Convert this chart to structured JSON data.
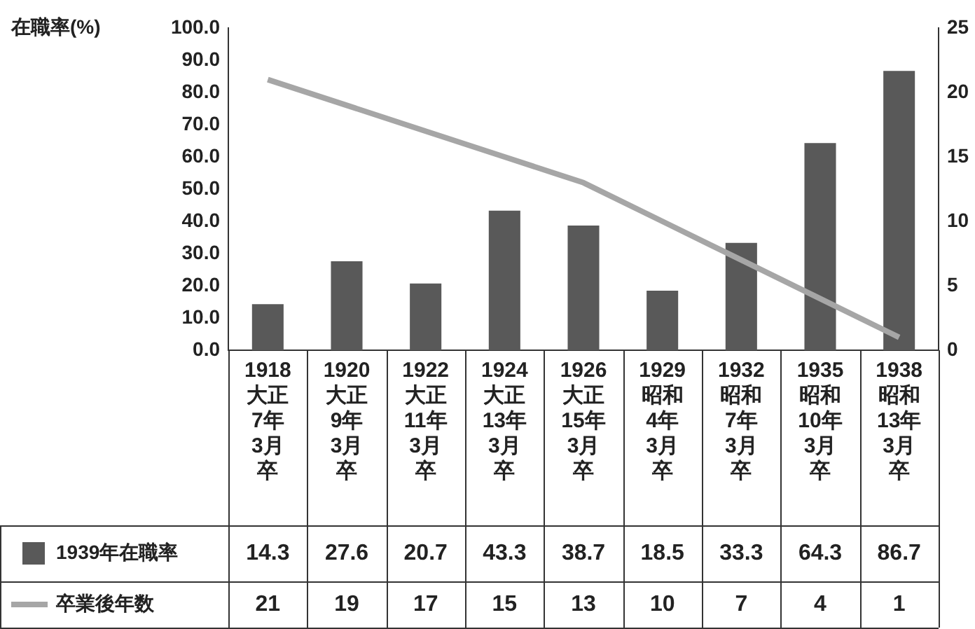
{
  "chart_data": {
    "type": "bar",
    "ylabel": "在職率(%)",
    "categories": [
      "1918 大正7年3月卒",
      "1920 大正9年3月卒",
      "1922 大正11年3月卒",
      "1924 大正13年3月卒",
      "1926 大正15年3月卒",
      "1929 昭和4年3月卒",
      "1932 昭和7年3月卒",
      "1935 昭和10年3月卒",
      "1938 昭和13年3月卒"
    ],
    "series": [
      {
        "name": "1939年在職率",
        "color": "#595959",
        "values": [
          14.3,
          27.6,
          20.7,
          43.3,
          38.7,
          18.5,
          33.3,
          64.3,
          86.7
        ]
      },
      {
        "name": "卒業後年数",
        "type": "line",
        "axis": "y2",
        "color": "#a6a6a6",
        "values": [
          21,
          19,
          17,
          15,
          13,
          10,
          7,
          4,
          1
        ]
      }
    ],
    "ylim": [
      0,
      100
    ],
    "yticks": [
      {
        "value": 0,
        "label": "0.0"
      },
      {
        "value": 10,
        "label": "10.0"
      },
      {
        "value": 20,
        "label": "20.0"
      },
      {
        "value": 30,
        "label": "30.0"
      },
      {
        "value": 40,
        "label": "40.0"
      },
      {
        "value": 50,
        "label": "50.0"
      },
      {
        "value": 60,
        "label": "60.0"
      },
      {
        "value": 70,
        "label": "70.0"
      },
      {
        "value": 80,
        "label": "80.0"
      },
      {
        "value": 90,
        "label": "90.0"
      },
      {
        "value": 100,
        "label": "100.0"
      }
    ],
    "y2lim": [
      0,
      25
    ],
    "y2ticks": [
      0,
      5,
      10,
      15,
      20,
      25
    ],
    "data_labels": true,
    "legend": "bottom",
    "grid": false,
    "marker": "none",
    "line_style": "solid"
  }
}
